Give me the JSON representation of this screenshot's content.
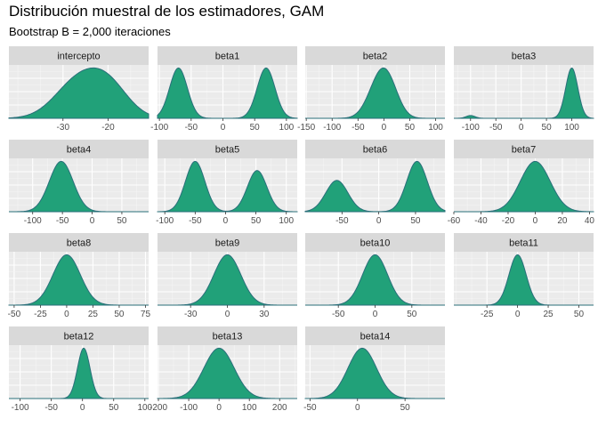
{
  "title": "Distribución muestral de los estimadores, GAM",
  "subtitle": "Bootstrap B = 2,000 iteraciones",
  "colors": {
    "panel_bg": "#ebebeb",
    "strip_bg": "#d9d9d9",
    "grid_major": "#ffffff",
    "grid_minor": "#f5f5f5",
    "density_fill": "#21a179",
    "density_line": "#2a6f7a"
  },
  "chart_data": {
    "type": "area",
    "layout": "facet-wrap 4 columns, free scales",
    "grid": true,
    "panels": [
      {
        "name": "intercepto",
        "xlim": [
          -42,
          -11
        ],
        "ticks": [
          -30,
          -20
        ],
        "tick_labels": [
          "-30",
          "-20"
        ],
        "components": [
          {
            "mean": -27,
            "sd": 5,
            "w": 0.55
          },
          {
            "mean": -20,
            "sd": 4.5,
            "w": 0.45
          }
        ]
      },
      {
        "name": "beta1",
        "xlim": [
          -103,
          117
        ],
        "ticks": [
          -100,
          -50,
          0,
          50,
          100
        ],
        "tick_labels": [
          "-100",
          "-50",
          "0",
          "50",
          "100"
        ],
        "components": [
          {
            "mean": -70,
            "sd": 14,
            "w": 0.5
          },
          {
            "mean": 68,
            "sd": 14,
            "w": 0.5
          }
        ]
      },
      {
        "name": "beta2",
        "xlim": [
          -152,
          118
        ],
        "ticks": [
          -150,
          -100,
          -50,
          0,
          50,
          100
        ],
        "tick_labels": [
          "-150",
          "-100",
          "-50",
          "0",
          "50",
          "100"
        ],
        "components": [
          {
            "mean": -10,
            "sd": 22,
            "w": 0.6
          },
          {
            "mean": 10,
            "sd": 20,
            "w": 0.4
          }
        ]
      },
      {
        "name": "beta3",
        "xlim": [
          -133,
          143
        ],
        "ticks": [
          -100,
          -50,
          0,
          50,
          100
        ],
        "tick_labels": [
          "-100",
          "-50",
          "0",
          "50",
          "100"
        ],
        "components": [
          {
            "mean": 100,
            "sd": 12,
            "w": 0.96
          },
          {
            "mean": -100,
            "sd": 9,
            "w": 0.04
          }
        ]
      },
      {
        "name": "beta4",
        "xlim": [
          -140,
          95
        ],
        "ticks": [
          -100,
          -50,
          0,
          50
        ],
        "tick_labels": [
          "-100",
          "-50",
          "0",
          "50"
        ],
        "components": [
          {
            "mean": -52,
            "sd": 20,
            "w": 1
          }
        ]
      },
      {
        "name": "beta5",
        "xlim": [
          -112,
          118
        ],
        "ticks": [
          -100,
          -50,
          0,
          50,
          100
        ],
        "tick_labels": [
          "-100",
          "-50",
          "0",
          "50",
          "100"
        ],
        "components": [
          {
            "mean": -50,
            "sd": 16,
            "w": 0.55
          },
          {
            "mean": 52,
            "sd": 16,
            "w": 0.45
          }
        ]
      },
      {
        "name": "beta6",
        "xlim": [
          -100,
          90
        ],
        "ticks": [
          -50,
          0,
          50
        ],
        "tick_labels": [
          "-50",
          "0",
          "50"
        ],
        "components": [
          {
            "mean": -57,
            "sd": 15,
            "w": 0.4
          },
          {
            "mean": 52,
            "sd": 14,
            "w": 0.6
          }
        ]
      },
      {
        "name": "beta7",
        "xlim": [
          -60,
          43
        ],
        "ticks": [
          -60,
          -40,
          -20,
          0,
          20,
          40
        ],
        "tick_labels": [
          "-60",
          "-40",
          "-20",
          "0",
          "20",
          "40"
        ],
        "components": [
          {
            "mean": 0,
            "sd": 11,
            "w": 1
          }
        ]
      },
      {
        "name": "beta8",
        "xlim": [
          -55,
          78
        ],
        "ticks": [
          -50,
          -25,
          0,
          25,
          50,
          75
        ],
        "tick_labels": [
          "-50",
          "-25",
          "0",
          "25",
          "50",
          "75"
        ],
        "components": [
          {
            "mean": 0,
            "sd": 13,
            "w": 1
          }
        ]
      },
      {
        "name": "beta9",
        "xlim": [
          -57,
          57
        ],
        "ticks": [
          -30,
          0,
          30
        ],
        "tick_labels": [
          "-30",
          "0",
          "30"
        ],
        "components": [
          {
            "mean": 0,
            "sd": 11,
            "w": 1
          }
        ]
      },
      {
        "name": "beta10",
        "xlim": [
          -95,
          95
        ],
        "ticks": [
          -50,
          0,
          50
        ],
        "tick_labels": [
          "-50",
          "0",
          "50"
        ],
        "components": [
          {
            "mean": 0,
            "sd": 17,
            "w": 1
          }
        ]
      },
      {
        "name": "beta11",
        "xlim": [
          -52,
          62
        ],
        "ticks": [
          -25,
          0,
          25,
          50
        ],
        "tick_labels": [
          "-25",
          "0",
          "25",
          "50"
        ],
        "components": [
          {
            "mean": 0,
            "sd": 7,
            "w": 1
          }
        ]
      },
      {
        "name": "beta12",
        "xlim": [
          -118,
          106
        ],
        "ticks": [
          -100,
          -50,
          0,
          50,
          100
        ],
        "tick_labels": [
          "-100",
          "-50",
          "0",
          "50",
          "100"
        ],
        "components": [
          {
            "mean": 2,
            "sd": 10,
            "w": 1
          }
        ]
      },
      {
        "name": "beta13",
        "xlim": [
          -203,
          258
        ],
        "ticks": [
          -200,
          -100,
          0,
          100,
          200
        ],
        "tick_labels": [
          "-200",
          "-100",
          "0",
          "100",
          "200"
        ],
        "components": [
          {
            "mean": 0,
            "sd": 50,
            "w": 1
          }
        ]
      },
      {
        "name": "beta14",
        "xlim": [
          -55,
          92
        ],
        "ticks": [
          -50,
          0,
          50
        ],
        "tick_labels": [
          "-50",
          "0",
          "50"
        ],
        "components": [
          {
            "mean": 5,
            "sd": 15,
            "w": 1
          }
        ]
      }
    ]
  }
}
